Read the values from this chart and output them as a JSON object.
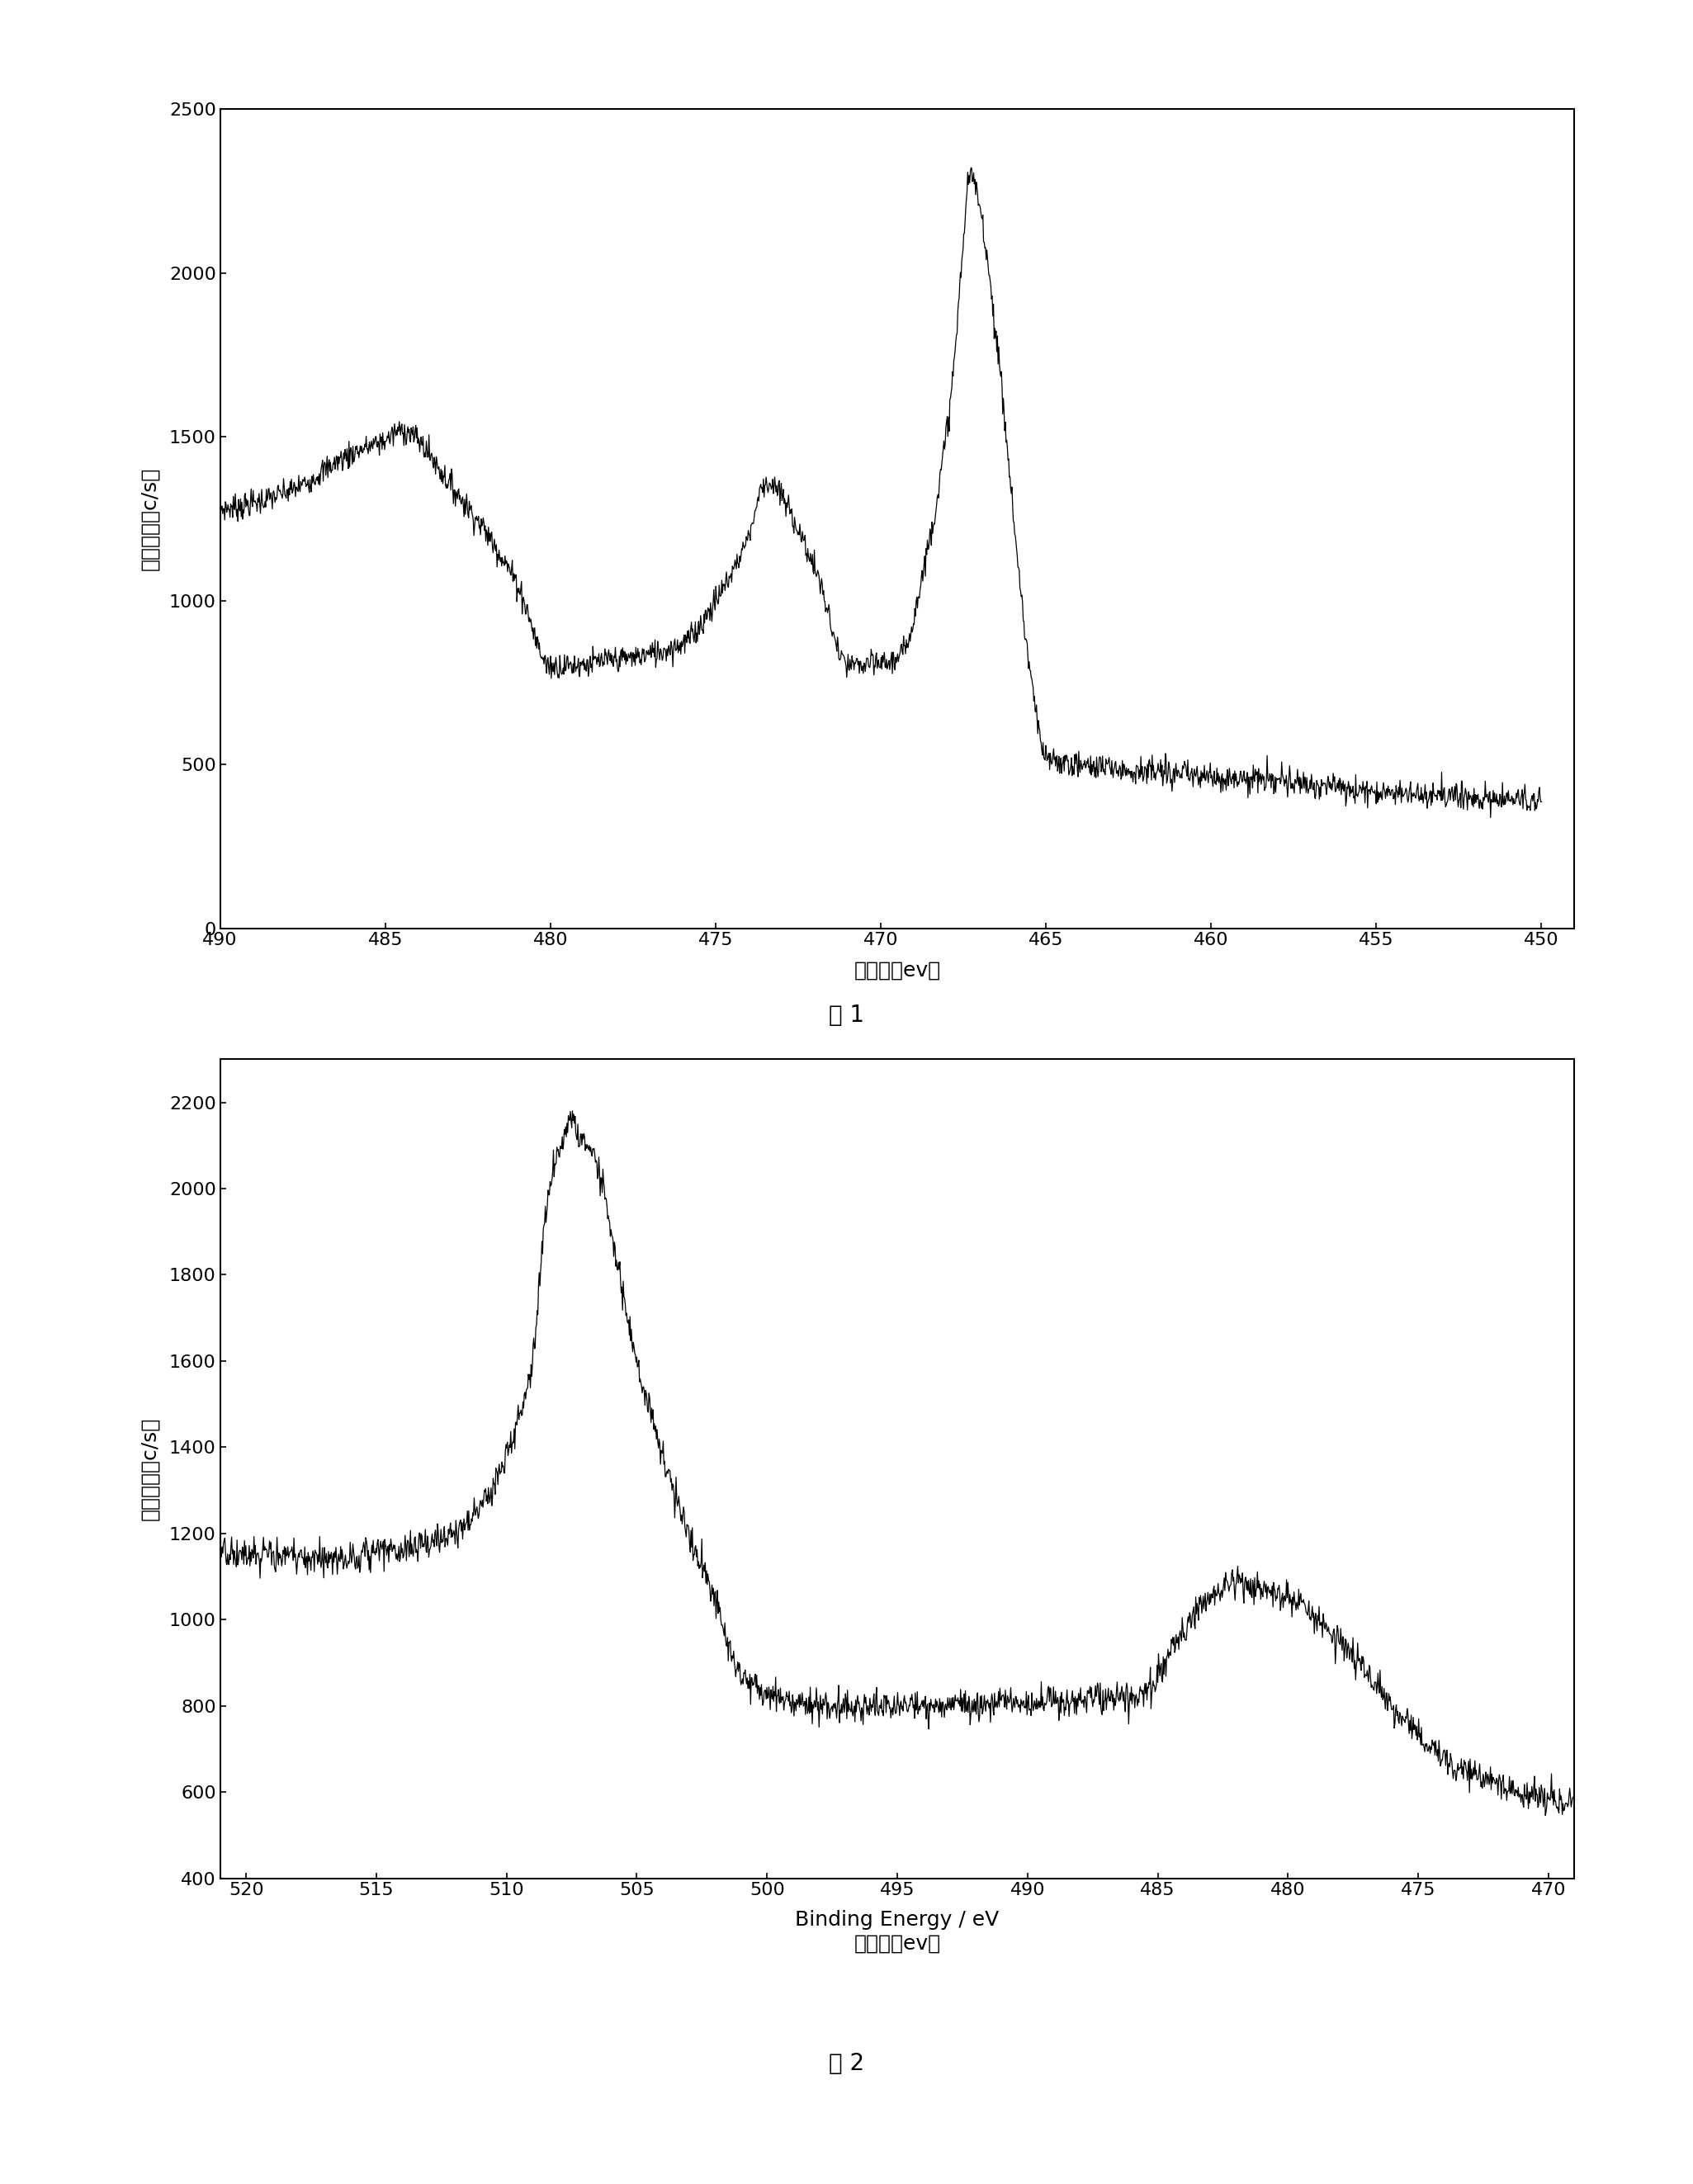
{
  "fig1": {
    "xlim": [
      490,
      449
    ],
    "ylim": [
      0,
      2500
    ],
    "yticks": [
      0,
      500,
      1000,
      1500,
      2000,
      2500
    ],
    "xticks": [
      490,
      485,
      480,
      475,
      470,
      465,
      460,
      455,
      450
    ],
    "xlabel": "结合能（ev）",
    "ylabel": "相对强度（c/s）",
    "caption": "图 1"
  },
  "fig2": {
    "xlim": [
      521,
      469
    ],
    "ylim": [
      400,
      2300
    ],
    "yticks": [
      400,
      600,
      800,
      1000,
      1200,
      1400,
      1600,
      1800,
      2000,
      2200
    ],
    "xticks": [
      520,
      515,
      510,
      505,
      500,
      495,
      490,
      485,
      480,
      475,
      470
    ],
    "xlabel_en": "Binding Energy / eV",
    "xlabel_cn": "结合能（ev）",
    "ylabel": "相对强度（c/s）",
    "caption": "图 2"
  },
  "line_color": "#000000",
  "background_color": "#ffffff"
}
